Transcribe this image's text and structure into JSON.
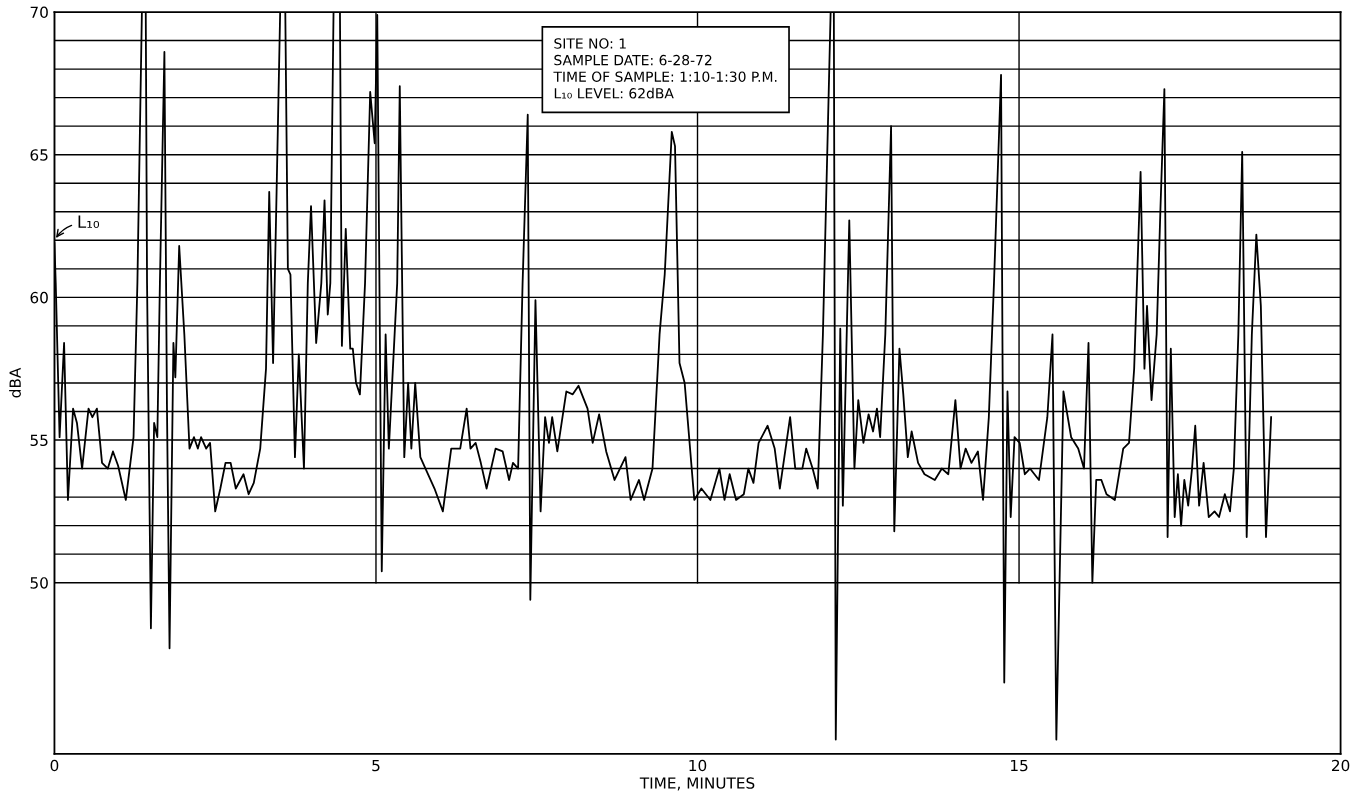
{
  "chart_data": {
    "type": "line",
    "xlabel": "TIME, MINUTES",
    "ylabel": "dBA",
    "x": [
      0.0,
      0.02,
      0.08,
      0.15,
      0.21,
      0.29,
      0.35,
      0.43,
      0.53,
      0.59,
      0.66,
      0.74,
      0.83,
      0.91,
      0.99,
      1.11,
      1.23,
      1.29,
      1.36,
      1.42,
      1.44,
      1.5,
      1.55,
      1.6,
      1.64,
      1.71,
      1.75,
      1.79,
      1.85,
      1.88,
      1.94,
      2.02,
      2.1,
      2.17,
      2.23,
      2.28,
      2.36,
      2.42,
      2.5,
      2.58,
      2.66,
      2.74,
      2.82,
      2.94,
      3.02,
      3.1,
      3.2,
      3.29,
      3.34,
      3.4,
      3.45,
      3.51,
      3.59,
      3.63,
      3.67,
      3.74,
      3.8,
      3.88,
      3.94,
      3.99,
      4.07,
      4.15,
      4.2,
      4.25,
      4.29,
      4.34,
      4.44,
      4.47,
      4.53,
      4.6,
      4.64,
      4.69,
      4.75,
      4.83,
      4.91,
      4.98,
      5.02,
      5.09,
      5.15,
      5.2,
      5.33,
      5.37,
      5.44,
      5.5,
      5.55,
      5.61,
      5.69,
      5.77,
      5.91,
      6.04,
      6.17,
      6.31,
      6.41,
      6.47,
      6.55,
      6.63,
      6.72,
      6.86,
      6.97,
      7.07,
      7.13,
      7.21,
      7.28,
      7.36,
      7.4,
      7.48,
      7.56,
      7.63,
      7.69,
      7.74,
      7.82,
      7.96,
      8.06,
      8.15,
      8.29,
      8.37,
      8.47,
      8.58,
      8.71,
      8.88,
      8.96,
      9.09,
      9.17,
      9.3,
      9.41,
      9.49,
      9.6,
      9.65,
      9.72,
      9.8,
      9.95,
      10.06,
      10.2,
      10.34,
      10.42,
      10.5,
      10.6,
      10.72,
      10.79,
      10.87,
      10.95,
      11.09,
      11.2,
      11.28,
      11.44,
      11.52,
      11.63,
      11.69,
      11.79,
      11.87,
      11.95,
      12.07,
      12.12,
      12.15,
      12.22,
      12.26,
      12.36,
      12.44,
      12.5,
      12.58,
      12.66,
      12.73,
      12.79,
      12.84,
      12.92,
      13.01,
      13.06,
      13.14,
      13.2,
      13.27,
      13.33,
      13.43,
      13.53,
      13.69,
      13.8,
      13.9,
      14.01,
      14.09,
      14.17,
      14.26,
      14.36,
      14.44,
      14.53,
      14.61,
      14.72,
      14.77,
      14.82,
      14.87,
      14.93,
      15.01,
      15.09,
      15.17,
      15.31,
      15.44,
      15.52,
      15.58,
      15.69,
      15.81,
      15.92,
      16.01,
      16.08,
      16.14,
      16.2,
      16.28,
      16.36,
      16.49,
      16.62,
      16.71,
      16.79,
      16.89,
      16.95,
      16.99,
      17.06,
      17.14,
      17.2,
      17.26,
      17.31,
      17.36,
      17.42,
      17.47,
      17.52,
      17.57,
      17.63,
      17.69,
      17.74,
      17.8,
      17.87,
      17.95,
      18.04,
      18.11,
      18.2,
      18.28,
      18.34,
      18.41,
      18.47,
      18.54,
      18.62,
      18.69,
      18.76,
      18.84,
      18.92
    ],
    "series": [
      {
        "color": "#000000",
        "values": [
          61.9,
          60.5,
          55.1,
          58.4,
          52.9,
          56.1,
          55.6,
          54.0,
          56.1,
          55.8,
          56.1,
          54.2,
          54.0,
          54.6,
          54.1,
          52.9,
          55.1,
          60.5,
          70,
          70,
          60.5,
          48.4,
          55.6,
          55.1,
          60.5,
          68.6,
          56.1,
          47.7,
          58.4,
          57.2,
          61.8,
          58.7,
          54.7,
          55.1,
          54.7,
          55.1,
          54.7,
          54.9,
          52.5,
          53.3,
          54.2,
          54.2,
          53.3,
          53.8,
          53.1,
          53.5,
          54.7,
          57.5,
          63.7,
          57.7,
          63.2,
          70,
          70,
          61.0,
          60.8,
          54.4,
          58.0,
          54.0,
          60.5,
          63.2,
          58.4,
          60.5,
          63.4,
          59.4,
          60.5,
          70,
          70,
          58.3,
          62.4,
          58.2,
          58.2,
          57.0,
          56.6,
          60.5,
          67.2,
          65.4,
          69.9,
          50.4,
          58.7,
          54.7,
          60.5,
          67.4,
          54.4,
          57.0,
          54.7,
          57.0,
          54.4,
          54.0,
          53.3,
          52.5,
          54.7,
          54.7,
          56.1,
          54.7,
          54.9,
          54.2,
          53.3,
          54.7,
          54.6,
          53.6,
          54.2,
          54.0,
          60.5,
          66.4,
          49.4,
          59.9,
          52.5,
          55.8,
          54.9,
          55.8,
          54.6,
          56.7,
          56.6,
          56.9,
          56.1,
          54.9,
          55.9,
          54.6,
          53.6,
          54.4,
          52.9,
          53.6,
          52.9,
          54.0,
          58.7,
          60.8,
          65.8,
          65.3,
          57.7,
          57.0,
          52.9,
          53.3,
          52.9,
          54.0,
          52.9,
          53.8,
          52.9,
          53.1,
          54.0,
          53.5,
          54.9,
          55.5,
          54.7,
          53.3,
          55.8,
          54.0,
          54.0,
          54.7,
          54.0,
          53.3,
          58.7,
          70,
          70,
          44.5,
          58.9,
          52.7,
          62.7,
          54.0,
          56.4,
          54.9,
          55.9,
          55.3,
          56.1,
          55.1,
          58.7,
          66.0,
          51.8,
          58.2,
          56.6,
          54.4,
          55.3,
          54.2,
          53.8,
          53.6,
          54.0,
          53.8,
          56.4,
          54.0,
          54.7,
          54.2,
          54.6,
          52.9,
          55.8,
          60.5,
          67.8,
          46.5,
          56.7,
          52.3,
          55.1,
          54.9,
          53.8,
          54.0,
          53.6,
          55.8,
          58.7,
          44.5,
          56.7,
          55.1,
          54.7,
          54.0,
          58.4,
          50.0,
          53.6,
          53.6,
          53.1,
          52.9,
          54.7,
          54.9,
          57.5,
          64.4,
          57.5,
          59.7,
          56.4,
          58.7,
          63.2,
          67.3,
          51.6,
          58.2,
          52.3,
          53.8,
          52.0,
          53.6,
          52.7,
          54.0,
          55.5,
          52.7,
          54.2,
          52.3,
          52.5,
          52.3,
          53.1,
          52.5,
          54.0,
          58.7,
          65.1,
          51.6,
          58.7,
          62.2,
          59.7,
          51.6,
          55.8
        ]
      }
    ],
    "xlim": [
      0,
      20
    ],
    "xticks": [
      0,
      5,
      10,
      15,
      20
    ],
    "ylim": [
      44,
      70
    ],
    "yticks": [
      50,
      {
        "value": 51,
        "label": null
      },
      {
        "value": 52,
        "label": null
      },
      {
        "value": 53,
        "label": null
      },
      {
        "value": 54,
        "label": null
      },
      55,
      {
        "value": 56,
        "label": null
      },
      {
        "value": 57,
        "label": null
      },
      {
        "value": 58,
        "label": null
      },
      {
        "value": 59,
        "label": null
      },
      60,
      {
        "value": 61,
        "label": null
      },
      {
        "value": 62,
        "label": null
      },
      {
        "value": 63,
        "label": null
      },
      {
        "value": 64,
        "label": null
      },
      65,
      {
        "value": 66,
        "label": null
      },
      {
        "value": 67,
        "label": null
      },
      {
        "value": 68,
        "label": null
      },
      {
        "value": 69,
        "label": null
      },
      70
    ],
    "grid": true,
    "line_style": "solid",
    "marker": "none",
    "annotations": [
      {
        "text": "L₁₀",
        "x": 0,
        "y": 62
      },
      "SITE NO: 1",
      "SAMPLE DATE: 6-28-72",
      "TIME OF SAMPLE: 1:10-1:30 P.M.",
      "L₁₀ LEVEL: 62dBA"
    ]
  }
}
